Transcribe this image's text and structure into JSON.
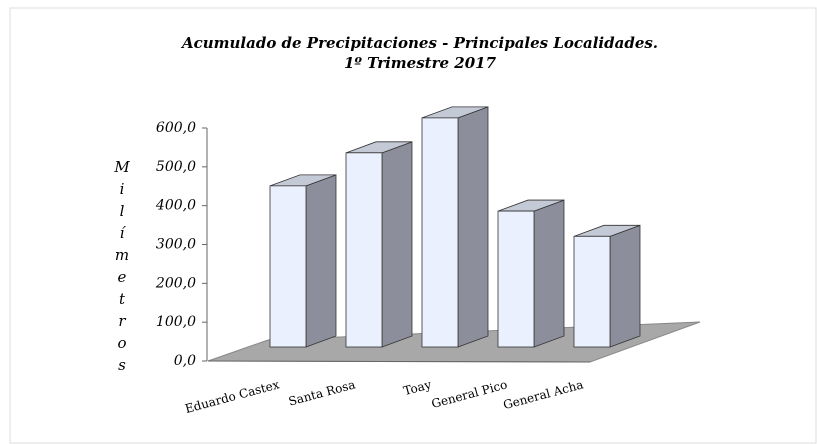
{
  "chart_data": {
    "type": "bar3d",
    "title": "Acumulado de Precipitaciones - Principales Localidades.",
    "subtitle": "1º Trimestre  2017",
    "y_label": "Milímetros",
    "categories": [
      "Eduardo Castex",
      "Santa Rosa",
      "Toay",
      "General Pico",
      "General Acha"
    ],
    "values": [
      415,
      500,
      590,
      350,
      285
    ],
    "color": "#eaf0fd",
    "ylim": [
      0,
      600
    ],
    "yticks": [
      {
        "value": 0,
        "label": "0,0"
      },
      {
        "value": 100,
        "label": "100,0"
      },
      {
        "value": 200,
        "label": "200,0"
      },
      {
        "value": 300,
        "label": "300,0"
      },
      {
        "value": 400,
        "label": "400,0"
      },
      {
        "value": 500,
        "label": "500,0"
      },
      {
        "value": 600,
        "label": "600,0"
      }
    ]
  }
}
